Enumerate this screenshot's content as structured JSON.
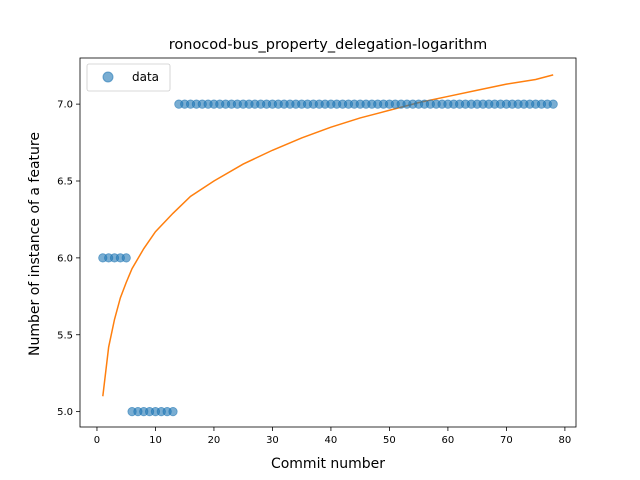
{
  "chart_data": {
    "type": "scatter",
    "title": "ronocod-bus_property_delegation-logarithm",
    "xlabel": "Commit number",
    "ylabel": "Number of instance of a feature",
    "xlim": [
      -2.9,
      81.9
    ],
    "ylim": [
      4.9,
      7.3
    ],
    "xticks": [
      0,
      10,
      20,
      30,
      40,
      50,
      60,
      70,
      80
    ],
    "yticks": [
      5.0,
      5.5,
      6.0,
      6.5,
      7.0
    ],
    "ytick_labels": [
      "5.0",
      "5.5",
      "6.0",
      "6.5",
      "7.0"
    ],
    "grid": false,
    "legend": {
      "placement": "top-left",
      "entries": [
        "data"
      ]
    },
    "colors": {
      "data": "#1f77b4",
      "fit": "#ff7f0e"
    },
    "series": [
      {
        "name": "data",
        "kind": "scatter",
        "x": [
          1,
          2,
          3,
          4,
          5,
          6,
          7,
          8,
          9,
          10,
          11,
          12,
          13,
          14,
          15,
          16,
          17,
          18,
          19,
          20,
          21,
          22,
          23,
          24,
          25,
          26,
          27,
          28,
          29,
          30,
          31,
          32,
          33,
          34,
          35,
          36,
          37,
          38,
          39,
          40,
          41,
          42,
          43,
          44,
          45,
          46,
          47,
          48,
          49,
          50,
          51,
          52,
          53,
          54,
          55,
          56,
          57,
          58,
          59,
          60,
          61,
          62,
          63,
          64,
          65,
          66,
          67,
          68,
          69,
          70,
          71,
          72,
          73,
          74,
          75,
          76,
          77,
          78
        ],
        "y": [
          6,
          6,
          6,
          6,
          6,
          5,
          5,
          5,
          5,
          5,
          5,
          5,
          5,
          7,
          7,
          7,
          7,
          7,
          7,
          7,
          7,
          7,
          7,
          7,
          7,
          7,
          7,
          7,
          7,
          7,
          7,
          7,
          7,
          7,
          7,
          7,
          7,
          7,
          7,
          7,
          7,
          7,
          7,
          7,
          7,
          7,
          7,
          7,
          7,
          7,
          7,
          7,
          7,
          7,
          7,
          7,
          7,
          7,
          7,
          7,
          7,
          7,
          7,
          7,
          7,
          7,
          7,
          7,
          7,
          7,
          7,
          7,
          7,
          7,
          7,
          7,
          7,
          7
        ]
      },
      {
        "kind": "line",
        "x": [
          1,
          2,
          3,
          4,
          5,
          6,
          8,
          10,
          13,
          16,
          20,
          25,
          30,
          35,
          40,
          45,
          50,
          55,
          60,
          65,
          70,
          75,
          78
        ],
        "y": [
          5.1,
          5.42,
          5.6,
          5.74,
          5.84,
          5.93,
          6.06,
          6.17,
          6.29,
          6.4,
          6.5,
          6.61,
          6.7,
          6.78,
          6.85,
          6.91,
          6.96,
          7.01,
          7.05,
          7.09,
          7.13,
          7.16,
          7.19
        ]
      }
    ]
  }
}
